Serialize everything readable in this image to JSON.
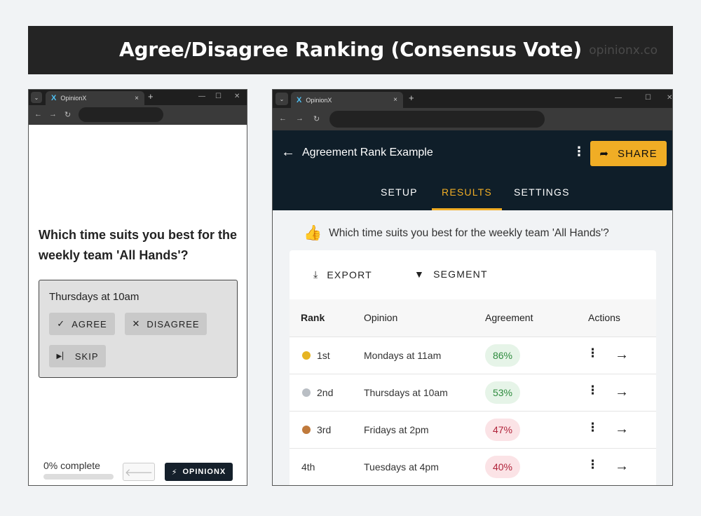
{
  "banner": {
    "title": "Agree/Disagree Ranking (Consensus Vote)",
    "brand": "opinionx.co"
  },
  "browser": {
    "tab_title": "OpinionX",
    "tab_close": "×",
    "new_tab": "+",
    "minimize": "—",
    "maximize": "☐",
    "close": "✕",
    "back": "←",
    "forward": "→",
    "reload": "↻",
    "menu": "⌄",
    "logo": "X"
  },
  "survey": {
    "question": "Which time suits you best for the weekly team 'All Hands'?",
    "option": "Thursdays at 10am",
    "agree": "AGREE",
    "disagree": "DISAGREE",
    "skip": "SKIP",
    "progress_text": "0% complete",
    "progress_value": 0,
    "back_icon": "🡐",
    "brand_button": "OPINIONX"
  },
  "app": {
    "title": "Agreement Rank Example",
    "share": "SHARE",
    "tabs": [
      {
        "label": "SETUP"
      },
      {
        "label": "RESULTS"
      },
      {
        "label": "SETTINGS"
      }
    ],
    "active_tab": "RESULTS",
    "question": "Which time suits you best for the weekly team 'All Hands'?",
    "export": "EXPORT",
    "segment": "SEGMENT",
    "columns": {
      "rank": "Rank",
      "opinion": "Opinion",
      "agreement": "Agreement",
      "actions": "Actions"
    },
    "rows": [
      {
        "rank": "1st",
        "opinion": "Mondays at 11am",
        "agreement": "86%",
        "tone": "positive",
        "medal": "gold"
      },
      {
        "rank": "2nd",
        "opinion": "Thursdays at 10am",
        "agreement": "53%",
        "tone": "positive",
        "medal": "silver"
      },
      {
        "rank": "3rd",
        "opinion": "Fridays at 2pm",
        "agreement": "47%",
        "tone": "negative",
        "medal": "bronze"
      },
      {
        "rank": "4th",
        "opinion": "Tuesdays at 4pm",
        "agreement": "40%",
        "tone": "negative",
        "medal": ""
      }
    ]
  },
  "colors": {
    "accent": "#f0ad25",
    "header_bg": "#0f1e29",
    "positive_bg": "#e6f4e8",
    "positive_fg": "#2e8b3e",
    "negative_bg": "#fbe3e6",
    "negative_fg": "#b0233a",
    "gold": "#e6b422",
    "silver": "#b9bec4",
    "bronze": "#c07a3c"
  }
}
